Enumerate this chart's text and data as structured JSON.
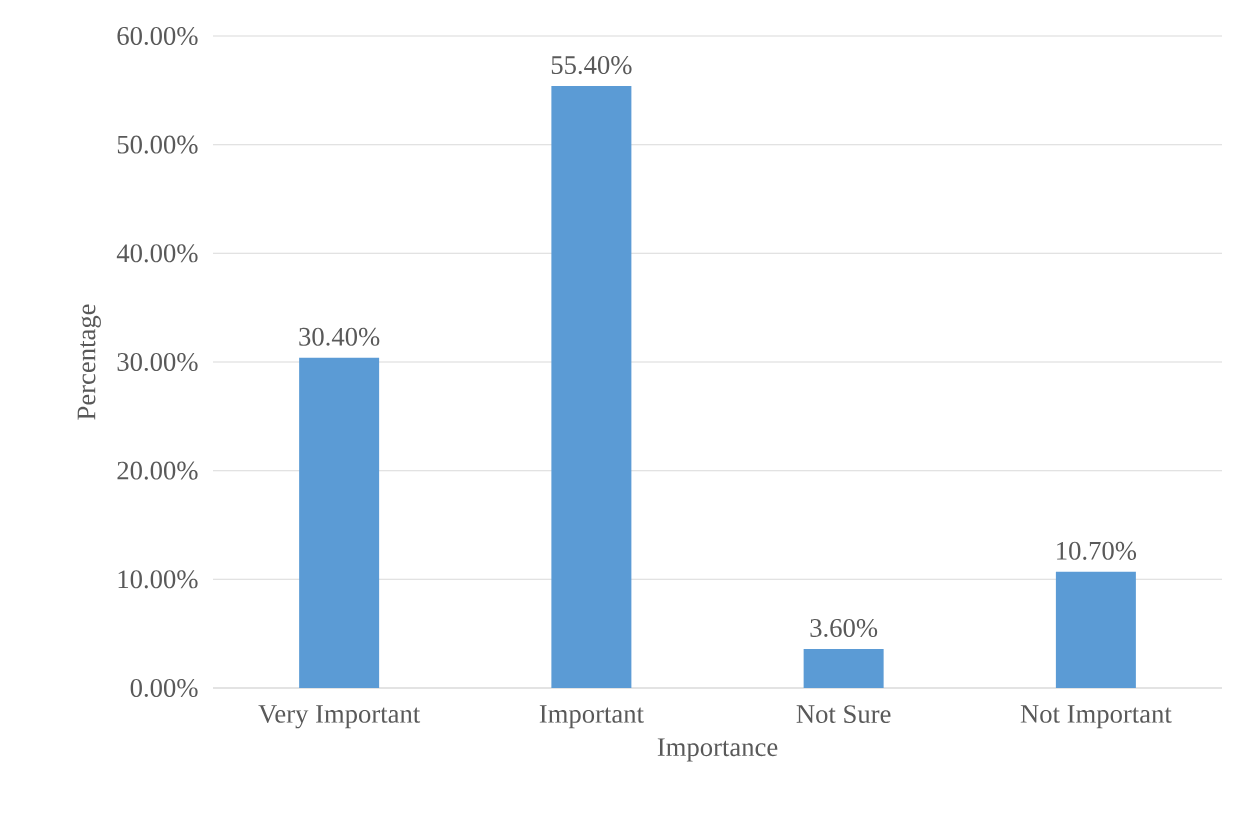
{
  "chart_data": {
    "type": "bar",
    "xlabel": "Importance",
    "ylabel": "Percentage",
    "categories": [
      "Very Important",
      "Important",
      "Not Sure",
      "Not Important"
    ],
    "values": [
      30.4,
      55.4,
      3.6,
      10.7
    ],
    "value_labels": [
      "30.40%",
      "55.40%",
      "3.60%",
      "10.70%"
    ],
    "color": "#5b9bd5",
    "ylim": [
      0,
      60
    ],
    "yticks": [
      {
        "value": 0,
        "label": "0.00%"
      },
      {
        "value": 10,
        "label": "10.00%"
      },
      {
        "value": 20,
        "label": "20.00%"
      },
      {
        "value": 30,
        "label": "30.00%"
      },
      {
        "value": 40,
        "label": "40.00%"
      },
      {
        "value": 50,
        "label": "50.00%"
      },
      {
        "value": 60,
        "label": "60.00%"
      }
    ],
    "grid": "y"
  }
}
